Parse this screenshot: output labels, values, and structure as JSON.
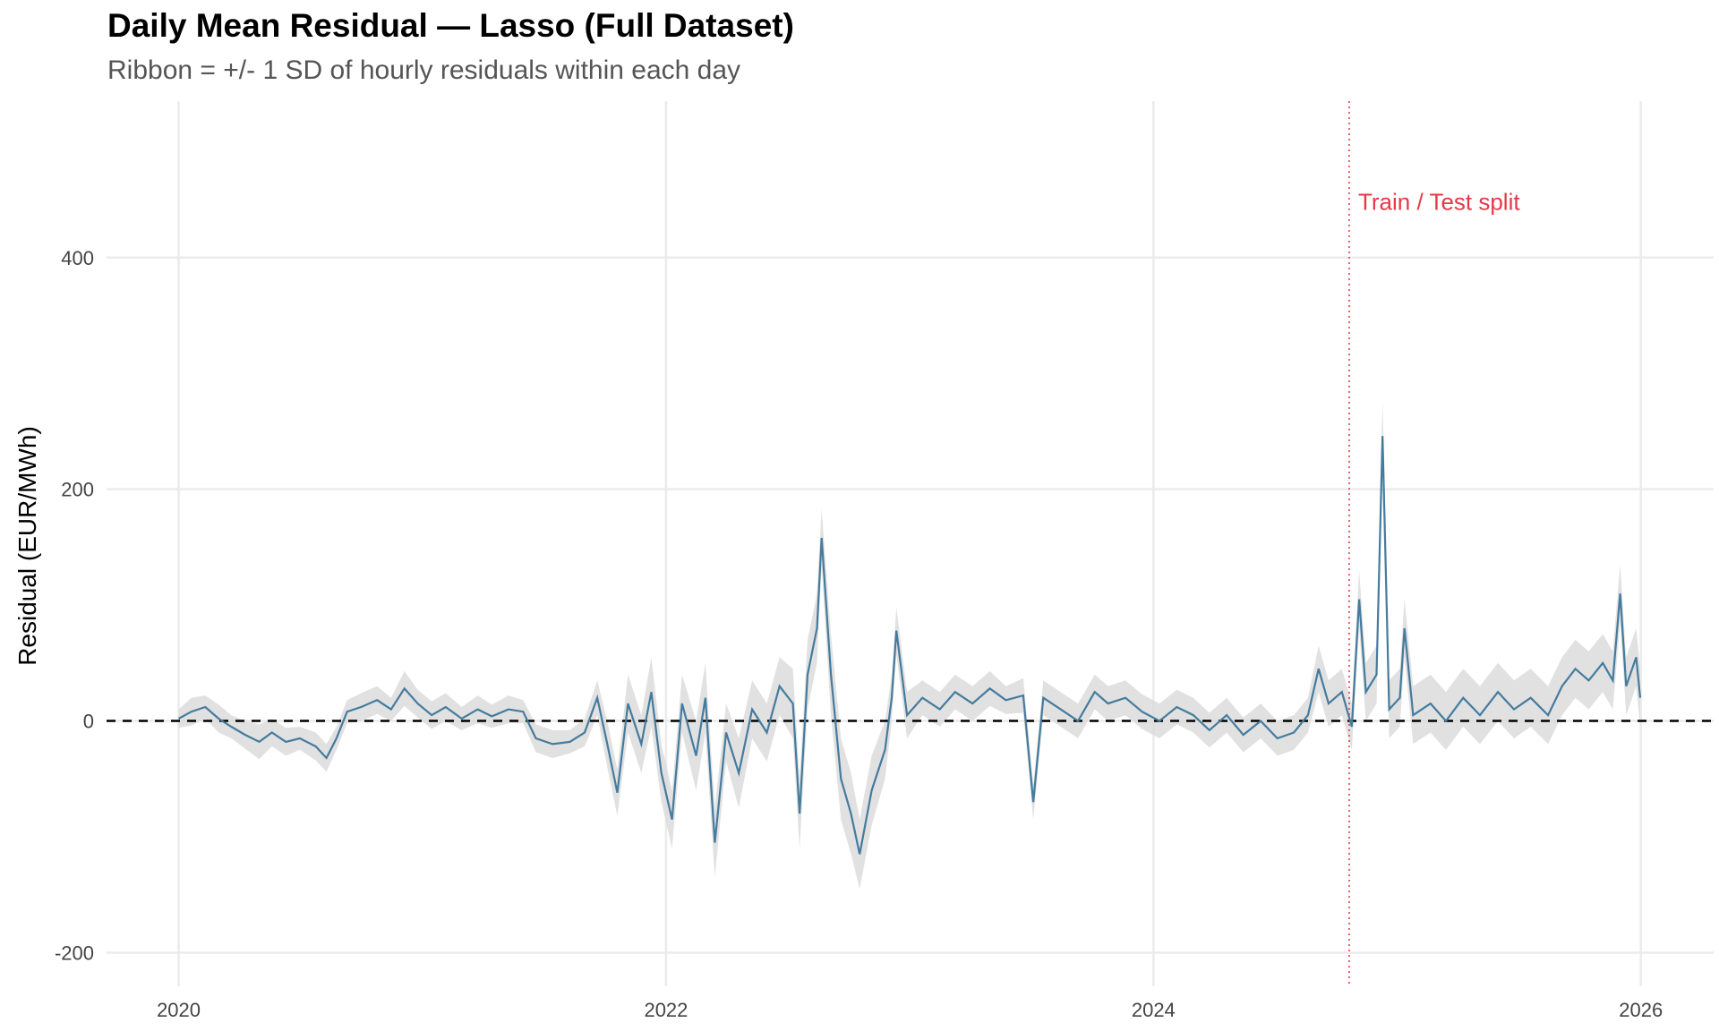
{
  "chart_data": {
    "type": "line",
    "title": "Daily Mean Residual — Lasso (Full Dataset)",
    "subtitle": "Ribbon = +/- 1 SD of hourly residuals within each day",
    "xlabel": "",
    "ylabel": "Residual (EUR/MWh)",
    "xlim": [
      "2019-09-15",
      "2026-04-20"
    ],
    "ylim": [
      -229,
      535
    ],
    "x_ticks": [
      "2020",
      "2022",
      "2024",
      "2026"
    ],
    "y_ticks": [
      "-200",
      "0",
      "200",
      "400"
    ],
    "y_tick_values": [
      -200,
      0,
      200,
      400
    ],
    "grid": true,
    "reference_line": {
      "y": 0,
      "style": "dashed",
      "color": "#000000"
    },
    "split": {
      "date": "2024-10-21",
      "label": "Train / Test split",
      "color": "#E63946"
    },
    "colors": {
      "line": "#457B9D",
      "ribbon": "#D9D9D9"
    },
    "series": [
      {
        "points": [
          [
            "2020-01-01",
            2,
            8
          ],
          [
            "2020-01-20",
            8,
            12
          ],
          [
            "2020-02-10",
            12,
            10
          ],
          [
            "2020-03-01",
            2,
            12
          ],
          [
            "2020-03-20",
            -5,
            10
          ],
          [
            "2020-04-10",
            -12,
            12
          ],
          [
            "2020-05-01",
            -18,
            15
          ],
          [
            "2020-05-20",
            -10,
            12
          ],
          [
            "2020-06-10",
            -18,
            12
          ],
          [
            "2020-07-01",
            -15,
            10
          ],
          [
            "2020-07-25",
            -22,
            12
          ],
          [
            "2020-08-10",
            -32,
            12
          ],
          [
            "2020-08-25",
            -15,
            10
          ],
          [
            "2020-09-10",
            8,
            10
          ],
          [
            "2020-10-01",
            12,
            12
          ],
          [
            "2020-10-25",
            18,
            12
          ],
          [
            "2020-11-15",
            10,
            10
          ],
          [
            "2020-12-05",
            28,
            15
          ],
          [
            "2020-12-25",
            15,
            12
          ],
          [
            "2021-01-15",
            5,
            12
          ],
          [
            "2021-02-05",
            12,
            12
          ],
          [
            "2021-03-01",
            2,
            10
          ],
          [
            "2021-03-25",
            10,
            12
          ],
          [
            "2021-04-15",
            4,
            10
          ],
          [
            "2021-05-10",
            10,
            12
          ],
          [
            "2021-06-01",
            8,
            10
          ],
          [
            "2021-06-20",
            -15,
            12
          ],
          [
            "2021-07-15",
            -20,
            12
          ],
          [
            "2021-08-10",
            -18,
            10
          ],
          [
            "2021-09-01",
            -10,
            12
          ],
          [
            "2021-09-20",
            20,
            15
          ],
          [
            "2021-10-05",
            -20,
            20
          ],
          [
            "2021-10-20",
            -62,
            20
          ],
          [
            "2021-11-05",
            15,
            25
          ],
          [
            "2021-11-25",
            -20,
            25
          ],
          [
            "2021-12-10",
            25,
            30
          ],
          [
            "2021-12-25",
            -45,
            25
          ],
          [
            "2022-01-10",
            -85,
            25
          ],
          [
            "2022-01-25",
            15,
            25
          ],
          [
            "2022-02-15",
            -30,
            30
          ],
          [
            "2022-03-01",
            20,
            30
          ],
          [
            "2022-03-15",
            -105,
            30
          ],
          [
            "2022-04-01",
            -10,
            25
          ],
          [
            "2022-04-20",
            -45,
            30
          ],
          [
            "2022-05-10",
            10,
            25
          ],
          [
            "2022-06-01",
            -10,
            25
          ],
          [
            "2022-06-20",
            30,
            25
          ],
          [
            "2022-07-10",
            15,
            30
          ],
          [
            "2022-07-20",
            -80,
            30
          ],
          [
            "2022-08-01",
            40,
            30
          ],
          [
            "2022-08-15",
            80,
            30
          ],
          [
            "2022-08-22",
            158,
            25
          ],
          [
            "2022-09-05",
            40,
            35
          ],
          [
            "2022-09-20",
            -50,
            35
          ],
          [
            "2022-10-05",
            -80,
            35
          ],
          [
            "2022-10-18",
            -115,
            30
          ],
          [
            "2022-11-05",
            -60,
            30
          ],
          [
            "2022-11-25",
            -25,
            25
          ],
          [
            "2022-12-05",
            20,
            20
          ],
          [
            "2022-12-12",
            78,
            20
          ],
          [
            "2022-12-28",
            5,
            20
          ],
          [
            "2023-01-20",
            20,
            15
          ],
          [
            "2023-02-15",
            10,
            15
          ],
          [
            "2023-03-10",
            25,
            15
          ],
          [
            "2023-04-05",
            15,
            15
          ],
          [
            "2023-05-01",
            28,
            15
          ],
          [
            "2023-05-25",
            18,
            12
          ],
          [
            "2023-06-20",
            22,
            15
          ],
          [
            "2023-07-05",
            -70,
            15
          ],
          [
            "2023-07-20",
            20,
            15
          ],
          [
            "2023-08-15",
            10,
            15
          ],
          [
            "2023-09-10",
            0,
            15
          ],
          [
            "2023-10-05",
            25,
            15
          ],
          [
            "2023-10-25",
            15,
            15
          ],
          [
            "2023-11-20",
            20,
            15
          ],
          [
            "2023-12-15",
            8,
            15
          ],
          [
            "2024-01-10",
            0,
            15
          ],
          [
            "2024-02-05",
            12,
            15
          ],
          [
            "2024-03-01",
            5,
            15
          ],
          [
            "2024-03-25",
            -8,
            15
          ],
          [
            "2024-04-20",
            5,
            15
          ],
          [
            "2024-05-15",
            -12,
            15
          ],
          [
            "2024-06-10",
            0,
            15
          ],
          [
            "2024-07-05",
            -15,
            15
          ],
          [
            "2024-07-30",
            -10,
            15
          ],
          [
            "2024-08-20",
            5,
            15
          ],
          [
            "2024-09-05",
            45,
            20
          ],
          [
            "2024-09-20",
            15,
            20
          ],
          [
            "2024-10-10",
            25,
            20
          ],
          [
            "2024-10-25",
            -5,
            20
          ],
          [
            "2024-11-05",
            105,
            25
          ],
          [
            "2024-11-15",
            25,
            25
          ],
          [
            "2024-12-01",
            40,
            25
          ],
          [
            "2024-12-10",
            246,
            30
          ],
          [
            "2024-12-20",
            10,
            25
          ],
          [
            "2025-01-05",
            20,
            25
          ],
          [
            "2025-01-12",
            80,
            25
          ],
          [
            "2025-01-25",
            5,
            25
          ],
          [
            "2025-02-20",
            15,
            25
          ],
          [
            "2025-03-15",
            0,
            25
          ],
          [
            "2025-04-10",
            20,
            25
          ],
          [
            "2025-05-05",
            5,
            25
          ],
          [
            "2025-06-01",
            25,
            25
          ],
          [
            "2025-06-25",
            10,
            25
          ],
          [
            "2025-07-20",
            20,
            25
          ],
          [
            "2025-08-15",
            5,
            25
          ],
          [
            "2025-09-05",
            30,
            25
          ],
          [
            "2025-09-25",
            45,
            25
          ],
          [
            "2025-10-15",
            35,
            25
          ],
          [
            "2025-11-05",
            50,
            25
          ],
          [
            "2025-11-20",
            35,
            25
          ],
          [
            "2025-12-01",
            110,
            25
          ],
          [
            "2025-12-10",
            30,
            25
          ],
          [
            "2025-12-25",
            55,
            25
          ],
          [
            "2025-12-31",
            20,
            25
          ]
        ]
      }
    ]
  }
}
